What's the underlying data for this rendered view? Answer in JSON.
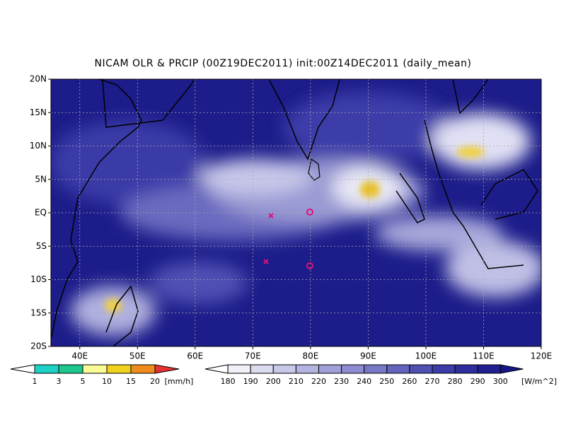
{
  "title": "NICAM OLR & PRCIP (00Z19DEC2011) init:00Z14DEC2011 (daily_mean)",
  "lat_labels": [
    "20N",
    "15N",
    "10N",
    "5N",
    "EQ",
    "5S",
    "10S",
    "15S",
    "20S"
  ],
  "lon_labels": [
    "40E",
    "50E",
    "60E",
    "70E",
    "80E",
    "90E",
    "100E",
    "110E",
    "120E"
  ],
  "precip_scale": {
    "labels": [
      1,
      3,
      5,
      10,
      15,
      20
    ],
    "unit": "[mm/h]"
  },
  "olr_scale": {
    "labels": [
      180,
      190,
      200,
      210,
      220,
      230,
      240,
      250,
      260,
      270,
      280,
      290,
      300
    ],
    "unit": "[W/m^2]"
  }
}
